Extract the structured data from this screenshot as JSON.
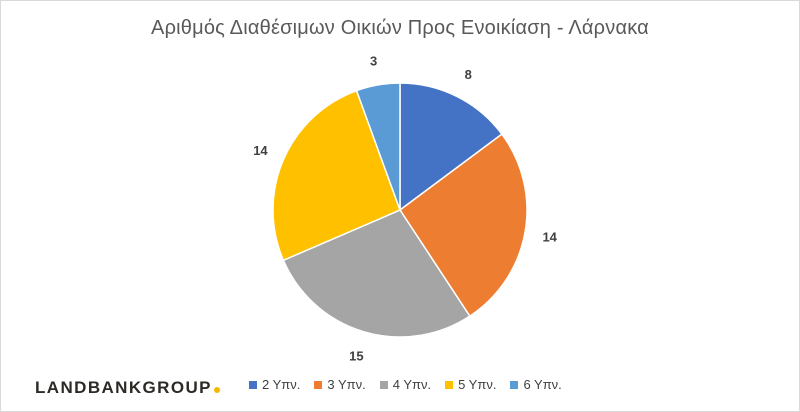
{
  "chart_data": {
    "type": "pie",
    "title": "Αριθμός Διαθέσιμων Οικιών Προς Ενοικίαση - Λάρνακα",
    "categories": [
      "2 Υπν.",
      "3 Υπν.",
      "4 Υπν.",
      "5 Υπν.",
      "6 Υπν."
    ],
    "values": [
      8,
      14,
      15,
      14,
      3
    ],
    "colors": [
      "#4472c4",
      "#ed7d31",
      "#a5a5a5",
      "#ffc000",
      "#5b9bd5"
    ],
    "start_angle_deg": 0,
    "direction": "clockwise",
    "legend_position": "bottom",
    "data_labels": "outside"
  },
  "logo": {
    "part1": "LANDBANK",
    "part2": "GROUP",
    "dot_color": "#f5b800"
  }
}
